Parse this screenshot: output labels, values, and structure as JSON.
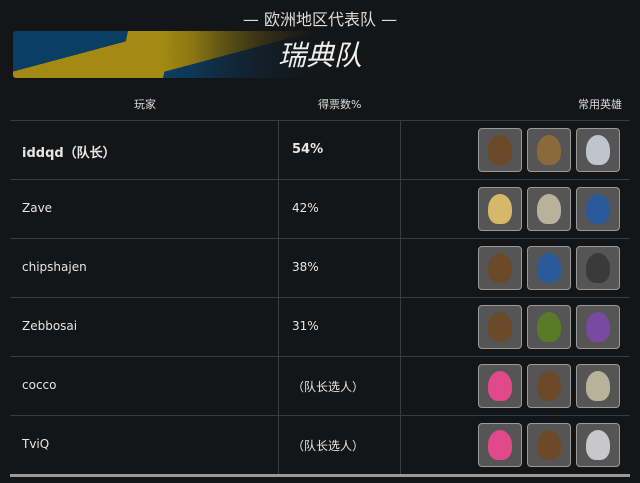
{
  "region_title": "— 欧洲地区代表队 —",
  "team_name": "瑞典队",
  "columns": {
    "player": "玩家",
    "votes": "得票数%",
    "heroes": "常用英雄"
  },
  "rows": [
    {
      "player": "iddqd（队长）",
      "votes": "54%",
      "heroes": [
        "mccree",
        "tracer",
        "soldier-76"
      ]
    },
    {
      "player": "Zave",
      "votes": "42%",
      "heroes": [
        "mercy",
        "zenyatta",
        "pharah"
      ]
    },
    {
      "player": "chipshajen",
      "votes": "38%",
      "heroes": [
        "mccree",
        "ana",
        "roadhog"
      ]
    },
    {
      "player": "Zebbosai",
      "votes": "31%",
      "heroes": [
        "mccree",
        "lucio",
        "widowmaker"
      ]
    },
    {
      "player": "cocco",
      "votes": "（队长选人）",
      "heroes": [
        "zarya",
        "mccree",
        "zenyatta"
      ]
    },
    {
      "player": "TviQ",
      "votes": "（队长选人）",
      "heroes": [
        "zarya",
        "mccree",
        "genji"
      ]
    }
  ],
  "colors": {
    "background": "#141517",
    "flag_blue": "#0b3e63",
    "flag_yellow": "#a38a12"
  }
}
